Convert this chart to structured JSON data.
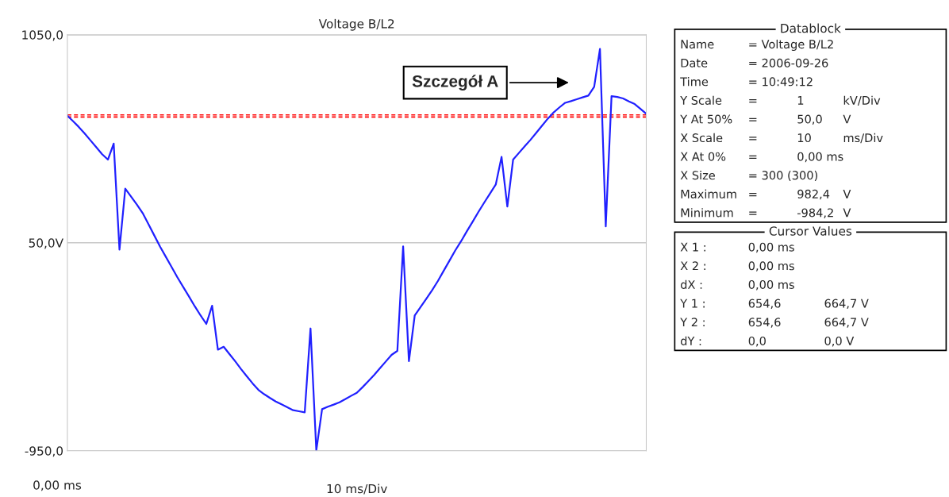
{
  "chart_data": [
    {
      "type": "line",
      "title": "Voltage B/L2",
      "xlabel": "10 ms/Div",
      "categories": [
        null,
        null,
        null,
        null,
        null,
        null,
        null,
        null,
        null,
        null,
        null,
        null,
        null,
        null,
        null,
        null,
        null,
        null,
        null,
        null,
        null,
        null,
        null,
        null,
        null,
        null,
        null,
        null,
        null,
        null,
        null,
        null,
        null,
        null,
        null,
        null,
        null,
        null,
        null,
        null,
        null,
        null,
        null,
        null,
        null,
        null,
        null,
        null,
        null,
        null,
        null,
        null,
        null,
        null,
        null,
        null,
        null,
        null,
        null,
        null,
        null,
        null,
        null,
        null,
        null,
        null,
        null,
        null,
        null,
        null,
        null,
        null,
        null,
        null,
        null,
        null,
        null,
        null,
        null,
        null,
        null,
        null,
        null,
        null,
        null,
        null,
        null,
        null,
        null,
        null,
        null,
        null,
        null,
        null,
        null,
        null,
        null,
        null,
        null,
        null,
        null
      ],
      "series": [
        {
          "color": "#2020ff",
          "values": [
            661,
            634,
            606,
            575,
            542,
            509,
            476,
            450,
            527,
            17,
            310,
            272,
            234,
            193,
            140,
            86,
            32,
            -17,
            -66,
            -116,
            -162,
            -208,
            -255,
            -299,
            -340,
            -253,
            -464,
            -450,
            -485,
            -520,
            -557,
            -592,
            -626,
            -657,
            -678,
            -696,
            -713,
            -727,
            -741,
            -755,
            -760,
            -765,
            -362,
            -948,
            -750,
            -738,
            -728,
            -717,
            -702,
            -686,
            -671,
            -644,
            -615,
            -585,
            -553,
            -521,
            -489,
            -470,
            33,
            -519,
            -300,
            -259,
            -219,
            -178,
            -134,
            -85,
            -36,
            13,
            57,
            105,
            151,
            198,
            243,
            286,
            330,
            463,
            224,
            450,
            482,
            514,
            545,
            579,
            613,
            647,
            677,
            701,
            723,
            731,
            740,
            749,
            758,
            800,
            982,
            129,
            755,
            751,
            744,
            730,
            717,
            694,
            670
          ]
        }
      ],
      "ylim": [
        -950,
        1050
      ],
      "yticks": [
        {
          "value": -950,
          "label": "-950,0"
        },
        {
          "value": 50,
          "label": "50,0V"
        },
        {
          "value": 1050,
          "label": "1050,0"
        }
      ],
      "grid": "y",
      "marker": "none",
      "line_style": "solid",
      "legend": false,
      "ref_lines": [
        {
          "axis": "y",
          "value": 654.6,
          "color": "#ff0000",
          "line_style": "dashed"
        },
        {
          "axis": "y",
          "value": 664.7,
          "color": "#ff0000",
          "line_style": "dashed"
        }
      ],
      "annotations": [
        "Szczegół A",
        "0,00 ms"
      ]
    },
    {
      "type": "other",
      "title": "Datablock",
      "annotations": [
        "Name\t= Voltage B/L2",
        "Date\t= 2006-09-26",
        "Time\t= 10:49:12",
        "Y Scale\t=\t1\tkV/Div",
        "Y At 50%\t=\t50,0\tV",
        "X Scale\t=\t10\tms/Div",
        "X At 0%\t=\t0,00 ms",
        "X Size\t= 300 (300)",
        "Maximum\t=\t982,4\tV",
        "Minimum\t=\t-984,2\tV"
      ]
    },
    {
      "type": "other",
      "title": "Cursor Values",
      "annotations": [
        "X 1 :\t0,00 ms",
        "X 2 :\t0,00 ms",
        "dX :\t0,00 ms",
        "Y 1 :\t654,6\t664,7 V",
        "Y 2 :\t654,6\t664,7 V",
        "dY :\t0,0\t0,0 V"
      ]
    }
  ]
}
